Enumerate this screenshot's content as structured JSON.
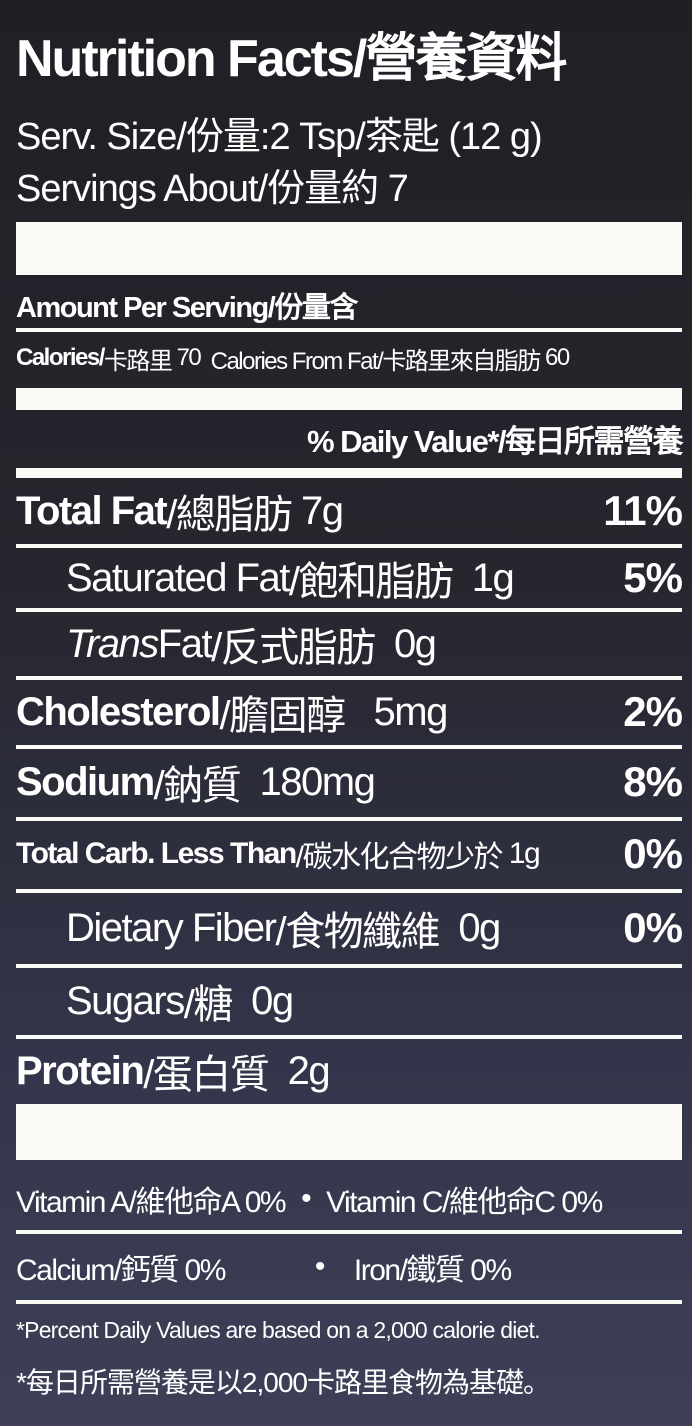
{
  "header": {
    "title": "Nutrition Facts/營養資料",
    "serving_size": "Serv. Size/份量:2 Tsp/茶匙 (12 g)",
    "servings": "Servings About/份量約 7"
  },
  "amount_per_serving": "Amount Per Serving/份量含",
  "calories": {
    "label": "Calories/",
    "label_zh": "卡路里",
    "value": "70",
    "from_fat_label": "Calories From Fat/卡路里來自脂肪",
    "from_fat_value": "60"
  },
  "daily_value_header": "% Daily Value*/每日所需營養",
  "nutrients": [
    {
      "name": "Total Fat",
      "name_zh": "/總脂肪",
      "amount": "7g",
      "dv": "11%"
    },
    {
      "name": "Saturated Fat",
      "name_zh": "/飽和脂肪",
      "amount": "1g",
      "dv": "5%"
    },
    {
      "name": "Trans",
      "name2": " Fat",
      "name_zh": "/反式脂肪",
      "amount": "0g",
      "dv": ""
    },
    {
      "name": "Cholesterol",
      "name_zh": "/膽固醇",
      "amount": "5mg",
      "dv": "2%"
    },
    {
      "name": "Sodium",
      "name_zh": "/鈉質",
      "amount": "180mg",
      "dv": "8%"
    },
    {
      "name": "Total Carb. Less Than",
      "name_zh": "/碳水化合物少於",
      "amount": "1g",
      "dv": "0%"
    },
    {
      "name": "Dietary Fiber",
      "name_zh": "/食物纖維",
      "amount": "0g",
      "dv": "0%"
    },
    {
      "name": "Sugars",
      "name_zh": "/糖",
      "amount": "0g",
      "dv": ""
    },
    {
      "name": "Protein ",
      "name_zh": "/蛋白質",
      "amount": "2g",
      "dv": ""
    }
  ],
  "vitamins": {
    "vitamin_a": "Vitamin A/維他命A 0%",
    "vitamin_c": "Vitamin C/維他命C 0%",
    "calcium": "Calcium/鈣質 0%",
    "iron": "Iron/鐵質 0%",
    "bullet": "•"
  },
  "footnote": {
    "en": "*Percent Daily Values are based on a 2,000 calorie diet.",
    "zh": "*每日所需營養是以2,000卡路里食物為基礎。"
  }
}
